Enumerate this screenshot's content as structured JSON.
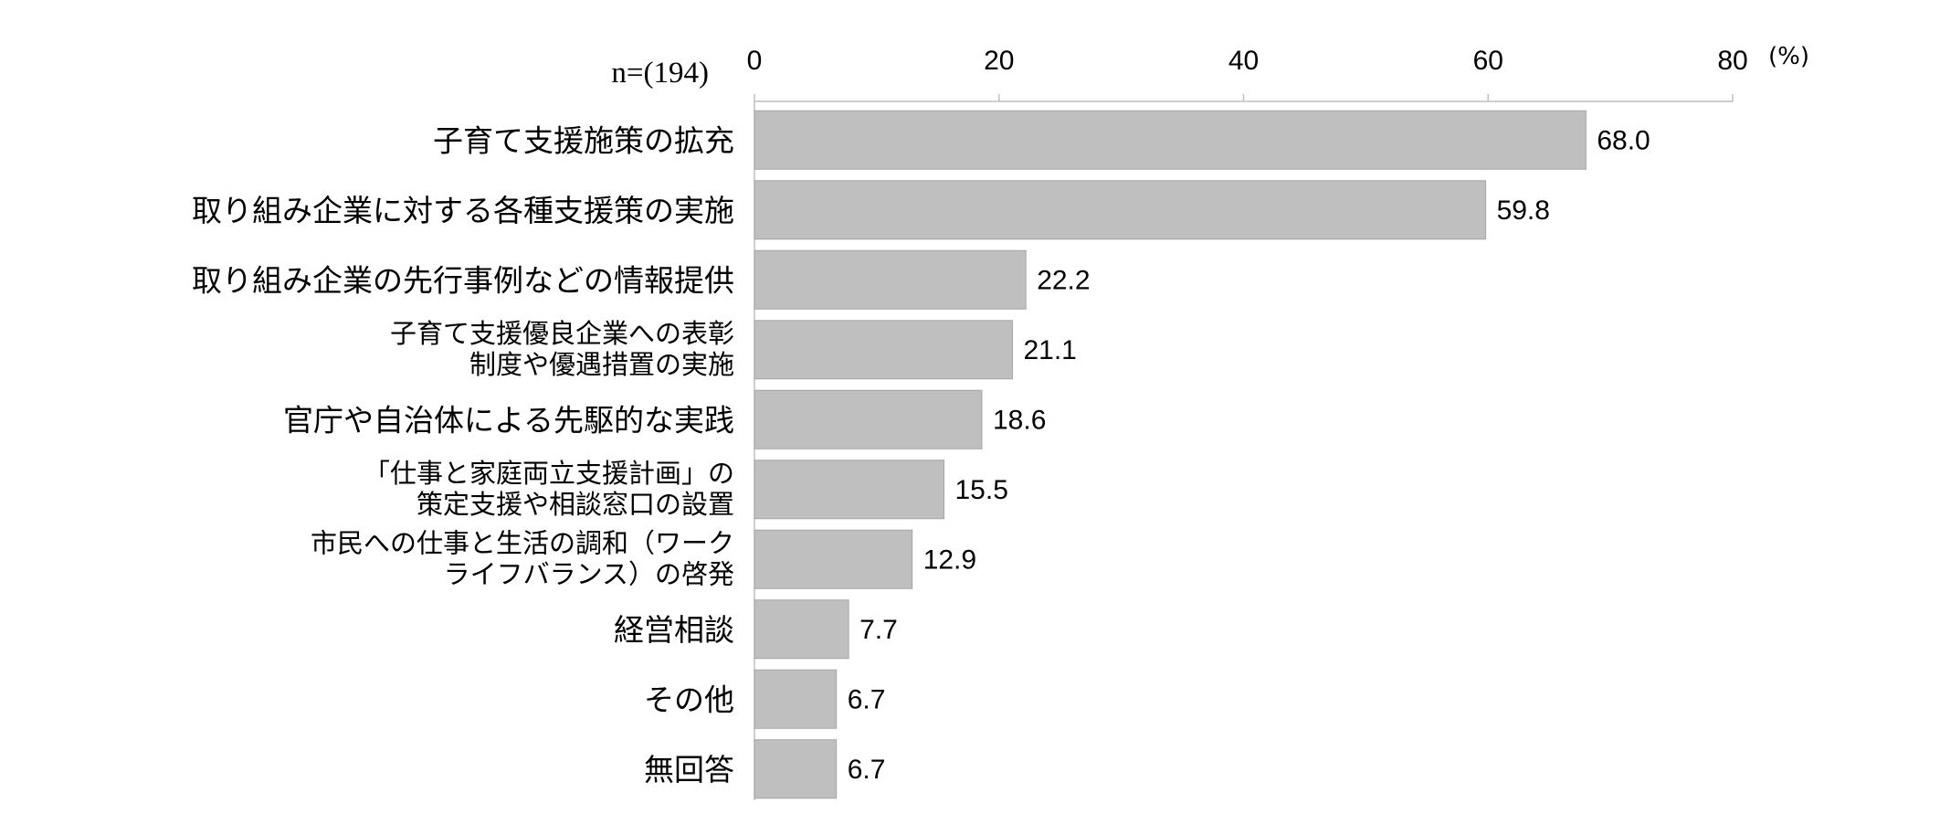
{
  "chart_data": {
    "type": "bar",
    "orientation": "horizontal",
    "sample_label": "n=(194)",
    "unit_label": "(%)",
    "xlim": [
      0,
      80
    ],
    "ticks": [
      "0",
      "20",
      "40",
      "60",
      "80"
    ],
    "grid": false,
    "bar_color": "#bfbfbf",
    "bar_edge_color": "#a6a6a6",
    "categories": [
      [
        "子育て支援施策の拡充"
      ],
      [
        "取り組み企業に対する各種支援策の実施"
      ],
      [
        "取り組み企業の先行事例などの情報提供"
      ],
      [
        "子育て支援優良企業への表彰",
        "制度や優遇措置の実施"
      ],
      [
        "官庁や自治体による先駆的な実践"
      ],
      [
        "「仕事と家庭両立支援計画」の",
        "策定支援や相談窓口の設置"
      ],
      [
        "市民への仕事と生活の調和（ワーク",
        "ライフバランス）の啓発"
      ],
      [
        "経営相談"
      ],
      [
        "その他"
      ],
      [
        "無回答"
      ]
    ],
    "values": [
      68.0,
      59.8,
      22.2,
      21.1,
      18.6,
      15.5,
      12.9,
      7.7,
      6.7,
      6.7
    ],
    "value_labels": [
      "68.0",
      "59.8",
      "22.2",
      "21.1",
      "18.6",
      "15.5",
      "12.9",
      "7.7",
      "6.7",
      "6.7"
    ]
  }
}
